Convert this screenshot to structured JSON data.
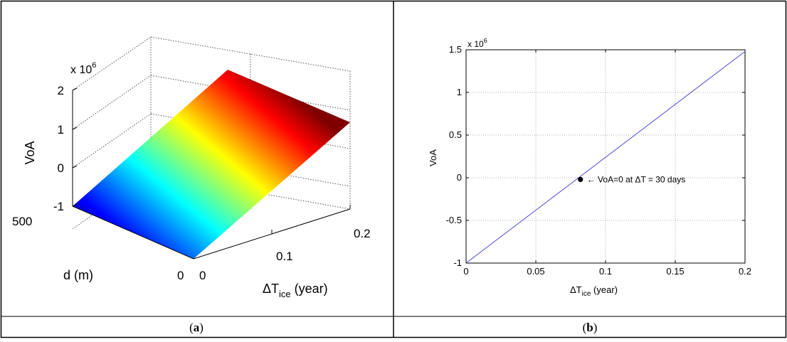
{
  "panels": {
    "a": {
      "caption_open": "(",
      "caption_letter": "a",
      "caption_close": ")"
    },
    "b": {
      "caption_open": "(",
      "caption_letter": "b",
      "caption_close": ")"
    }
  },
  "chart_data": [
    {
      "type": "surface",
      "panel": "a",
      "title": "",
      "zlabel": "VoA",
      "ylabel": "d (m)",
      "xlabel_main": "ΔT",
      "xlabel_sub": "ice",
      "xlabel_tail": " (year)",
      "z_multiplier": "x 10",
      "z_multiplier_exp": "6",
      "x_range": [
        0,
        0.2
      ],
      "y_range": [
        0,
        500
      ],
      "z_range": [
        -1,
        2
      ],
      "x_ticks": [
        {
          "v": 0,
          "label": "0"
        },
        {
          "v": 0.1,
          "label": "0.1"
        },
        {
          "v": 0.2,
          "label": "0.2"
        }
      ],
      "y_ticks": [
        {
          "v": 0,
          "label": "0"
        },
        {
          "v": 500,
          "label": "500"
        }
      ],
      "z_ticks": [
        {
          "v": -1,
          "label": "-1"
        },
        {
          "v": 0,
          "label": "0"
        },
        {
          "v": 1,
          "label": "1"
        },
        {
          "v": 2,
          "label": "2"
        }
      ],
      "surface_corners": [
        {
          "x": 0,
          "y": 0,
          "z": -1
        },
        {
          "x": 0.2,
          "y": 0,
          "z": 1.5
        },
        {
          "x": 0.2,
          "y": 500,
          "z": 1.5
        },
        {
          "x": 0,
          "y": 500,
          "z": -1
        }
      ],
      "colormap": "jet",
      "grid": true
    },
    {
      "type": "line",
      "panel": "b",
      "title": "",
      "ylabel": "VoA",
      "xlabel_main": "ΔT",
      "xlabel_sub": "ice",
      "xlabel_tail": " (year)",
      "y_multiplier": "x 10",
      "y_multiplier_exp": "6",
      "xlim": [
        0,
        0.2
      ],
      "ylim": [
        -1,
        1.5
      ],
      "x_ticks": [
        {
          "v": 0,
          "label": "0"
        },
        {
          "v": 0.05,
          "label": "0.05"
        },
        {
          "v": 0.1,
          "label": "0.1"
        },
        {
          "v": 0.15,
          "label": "0.15"
        },
        {
          "v": 0.2,
          "label": "0.2"
        }
      ],
      "y_ticks": [
        {
          "v": -1,
          "label": "-1"
        },
        {
          "v": -0.5,
          "label": "-0.5"
        },
        {
          "v": 0,
          "label": "0"
        },
        {
          "v": 0.5,
          "label": "0.5"
        },
        {
          "v": 1,
          "label": "1"
        },
        {
          "v": 1.5,
          "label": "1.5"
        }
      ],
      "series": [
        {
          "x": [
            0,
            0.2
          ],
          "y": [
            -1,
            1.48
          ],
          "color": "#4b4bd6"
        }
      ],
      "marker": {
        "x": 0.082,
        "y": -0.02
      },
      "annotation": "← VoA=0 at ΔT = 30 days",
      "grid": true
    }
  ]
}
